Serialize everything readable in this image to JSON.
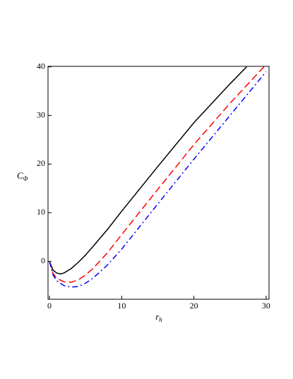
{
  "chart_data": {
    "type": "line",
    "xlabel": "r",
    "xlabel_sub": "h",
    "ylabel": "C",
    "ylabel_sub": "Φ",
    "xlim": [
      -0.2,
      30.4
    ],
    "ylim": [
      -7.8,
      40.1
    ],
    "xticks": [
      0,
      10,
      20,
      30
    ],
    "yticks": [
      0,
      10,
      20,
      30,
      40
    ],
    "series": [
      {
        "color": "#000000",
        "dash": "solid",
        "x": [
          0,
          0.5,
          1,
          1.5,
          2,
          3,
          4,
          5,
          6,
          8,
          10,
          15,
          20,
          25,
          27.3
        ],
        "values": [
          0,
          -1.8,
          -2.4,
          -2.6,
          -2.4,
          -1.5,
          -0.2,
          1.3,
          3,
          6.5,
          10.3,
          19.5,
          28.5,
          36.5,
          40
        ]
      },
      {
        "color": "#ff0000",
        "dash": "dashed",
        "x": [
          0,
          0.5,
          1,
          2,
          3,
          4,
          5,
          6,
          8,
          10,
          15,
          20,
          25,
          29.7
        ],
        "values": [
          0,
          -2.5,
          -3.5,
          -4.2,
          -4.3,
          -3.8,
          -2.8,
          -1.5,
          1.7,
          5.5,
          14.8,
          24,
          32.5,
          40
        ]
      },
      {
        "color": "#0000ff",
        "dash": "dashdot",
        "x": [
          0,
          0.5,
          1,
          2,
          3,
          4,
          5,
          6,
          8,
          10,
          15,
          20,
          25,
          30
        ],
        "values": [
          0,
          -2.8,
          -4,
          -5,
          -5.3,
          -5.2,
          -4.5,
          -3.5,
          -0.8,
          2.5,
          11.8,
          21,
          30,
          39
        ]
      }
    ]
  }
}
